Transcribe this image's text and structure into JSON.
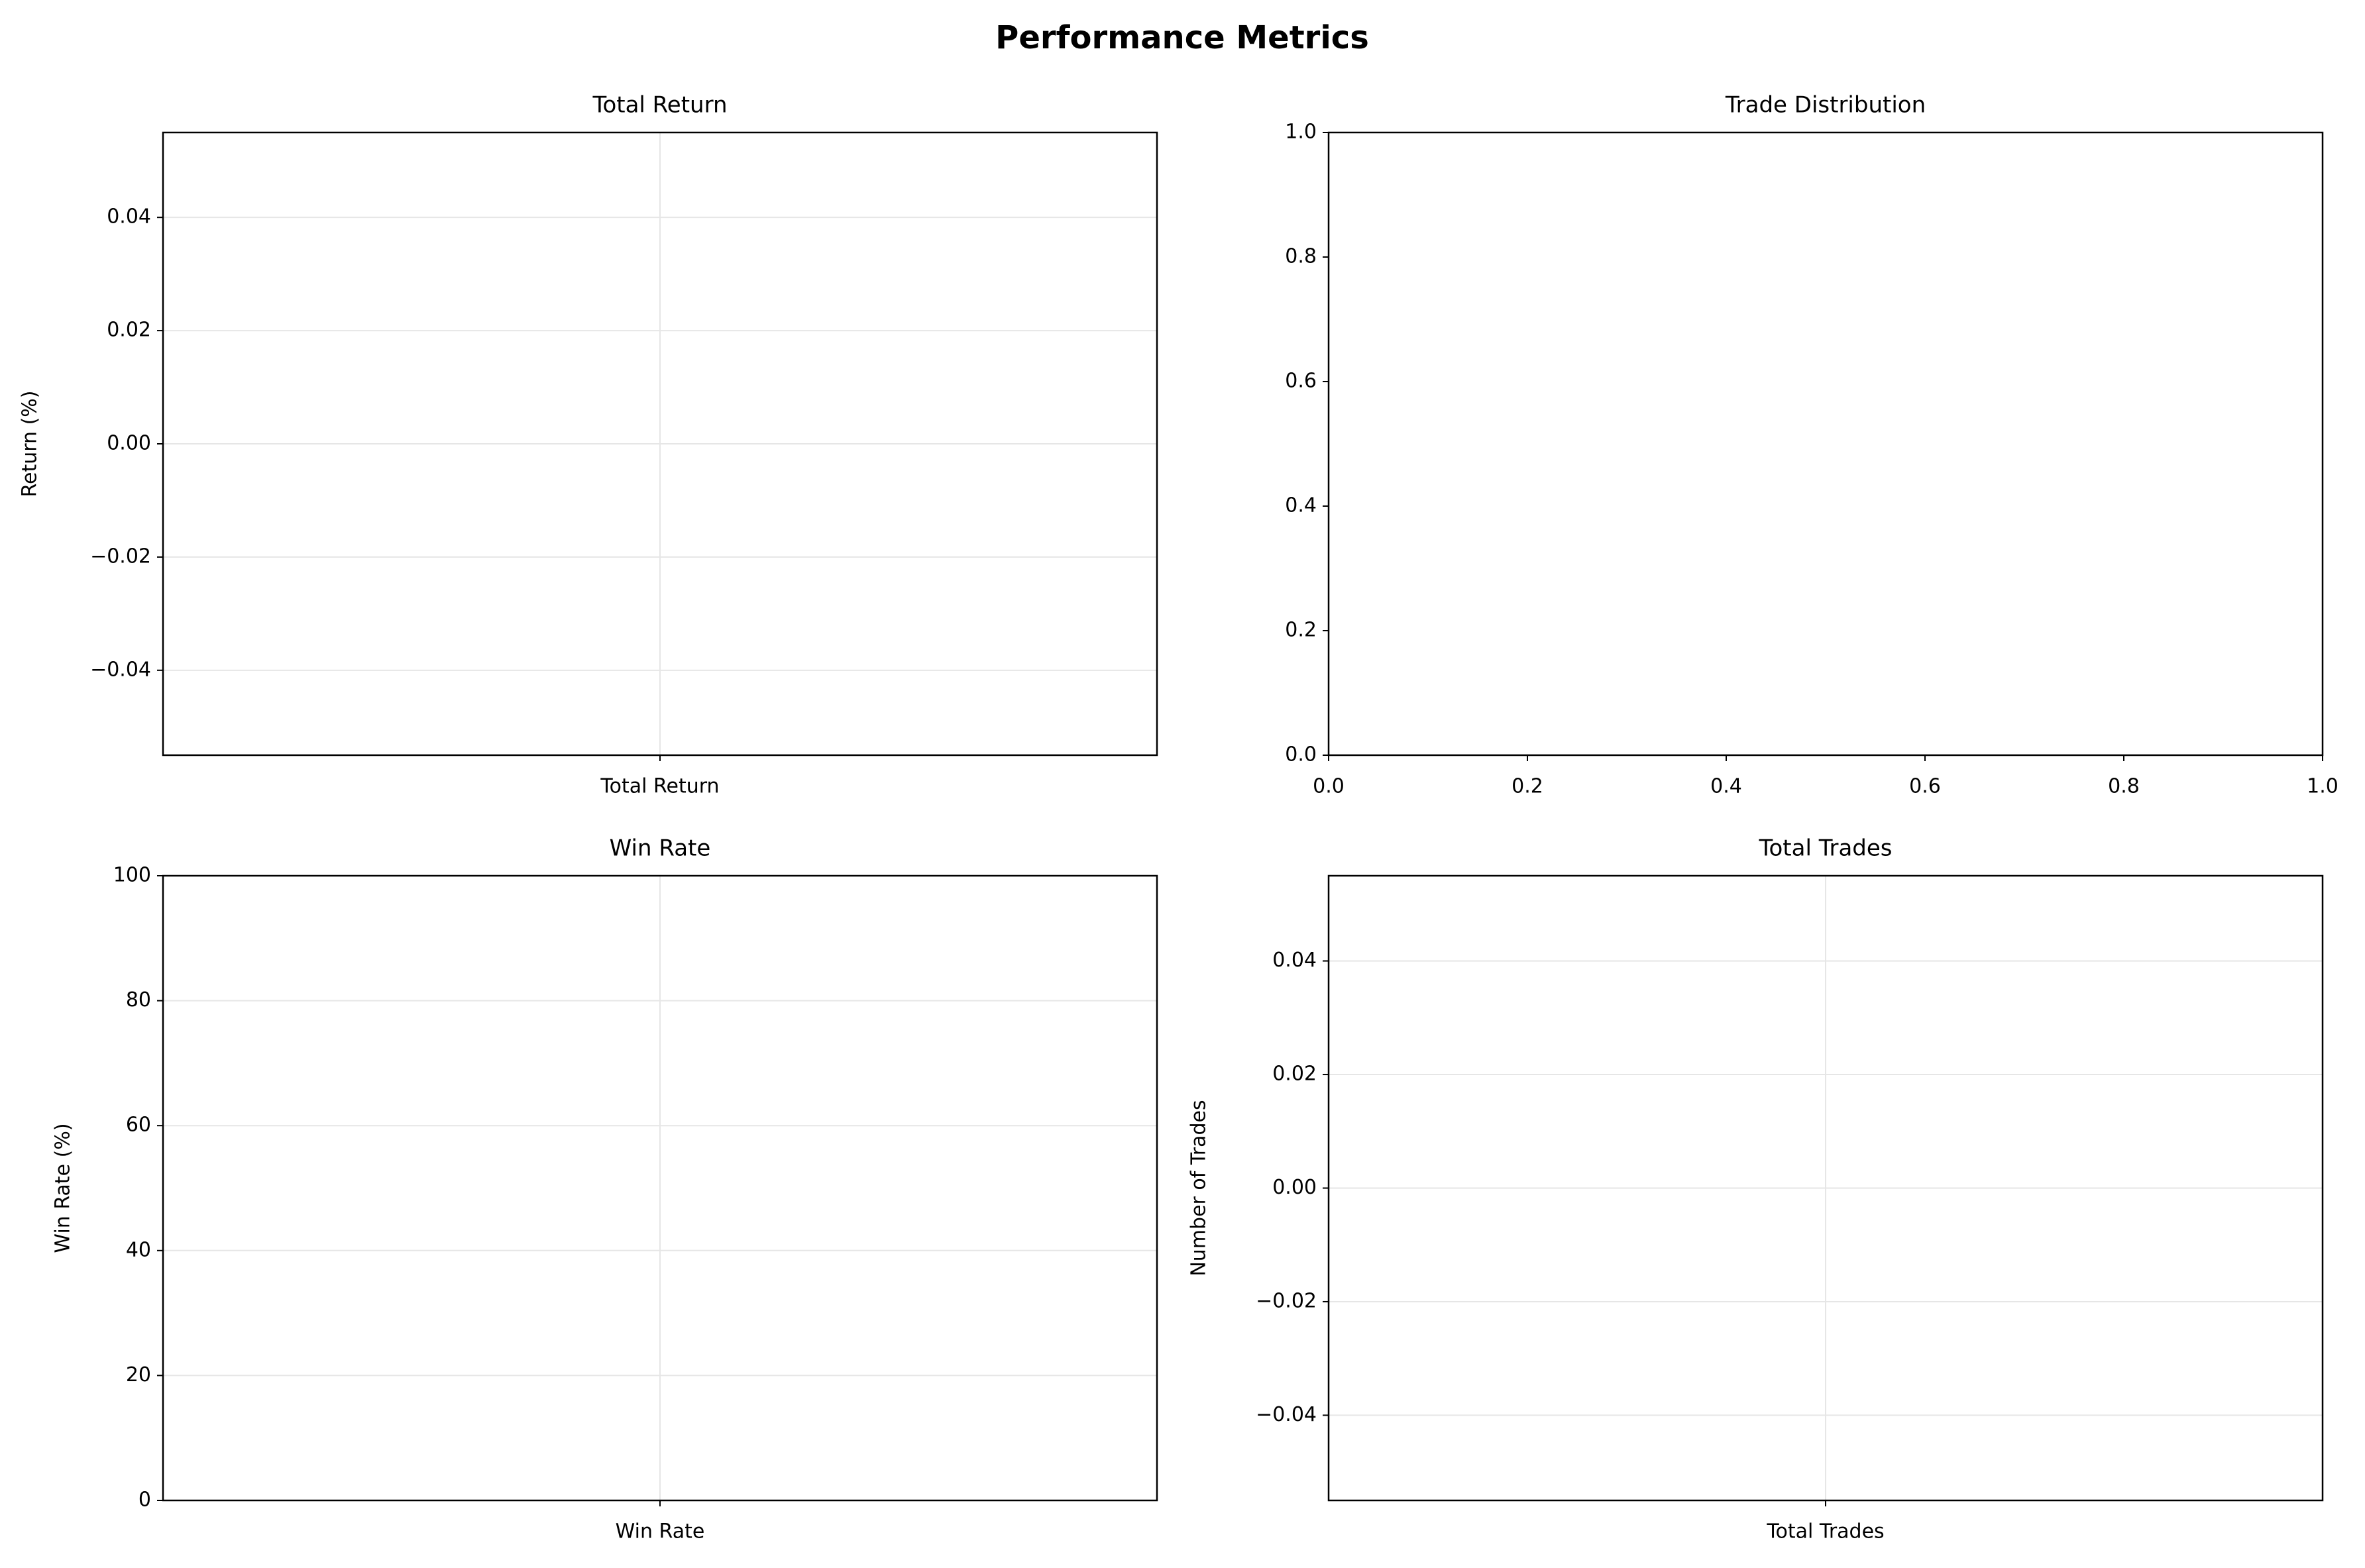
{
  "title": "Performance Metrics",
  "chart_data": [
    {
      "type": "bar",
      "title": "Total Return",
      "ylabel": "Return (%)",
      "categories": [
        "Total Return"
      ],
      "values": [
        0
      ],
      "ylim": [
        -0.055,
        0.055
      ],
      "yticks": [
        {
          "value": -0.04,
          "label": "−0.04"
        },
        {
          "value": -0.02,
          "label": "−0.02"
        },
        {
          "value": 0,
          "label": "0.00"
        },
        0.02,
        0.04
      ],
      "grid": true
    },
    {
      "type": "pie",
      "title": "Trade Distribution",
      "xlim": [
        0,
        1
      ],
      "ylim": [
        0,
        1
      ],
      "xticks": [
        {
          "value": 0,
          "label": "0.0"
        },
        0.2,
        0.4,
        0.6,
        0.8,
        {
          "value": 1,
          "label": "1.0"
        }
      ],
      "yticks": [
        {
          "value": 0,
          "label": "0.0"
        },
        0.2,
        0.4,
        0.6,
        0.8,
        {
          "value": 1,
          "label": "1.0"
        }
      ],
      "grid": false
    },
    {
      "type": "bar",
      "title": "Win Rate",
      "ylabel": "Win Rate (%)",
      "categories": [
        "Win Rate"
      ],
      "values": [
        0
      ],
      "ylim": [
        0,
        100
      ],
      "yticks": [
        0,
        20,
        40,
        60,
        80,
        100
      ],
      "grid": true
    },
    {
      "type": "bar",
      "title": "Total Trades",
      "ylabel": "Number of Trades",
      "categories": [
        "Total Trades"
      ],
      "values": [
        0
      ],
      "ylim": [
        -0.055,
        0.055
      ],
      "yticks": [
        {
          "value": -0.04,
          "label": "−0.04"
        },
        {
          "value": -0.02,
          "label": "−0.02"
        },
        {
          "value": 0,
          "label": "0.00"
        },
        0.02,
        0.04
      ],
      "grid": true
    }
  ]
}
